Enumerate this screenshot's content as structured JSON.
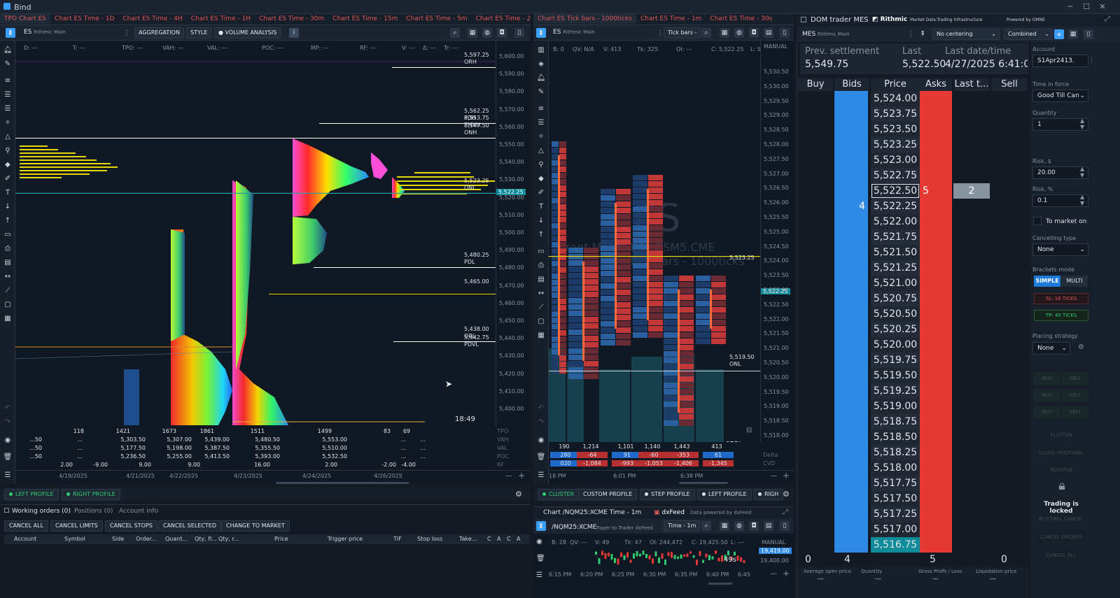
{
  "app": {
    "title": "Bind"
  },
  "left_panel": {
    "tabs": [
      "TPO Chart ES",
      "Chart ES Time - 1D",
      "Chart ES Time - 4H",
      "Chart ES Time - 1H",
      "Chart ES Time - 30m",
      "Chart ES Time - 15m",
      "Chart ES Time - 5m",
      "Chart ES Time - 2m",
      "Cha"
    ],
    "symbol": "ES",
    "connection": "Rithmic Main",
    "buttons": {
      "aggregation": "AGGREGATION",
      "style": "STYLE",
      "volume_analysis": "VOLUME ANALYSIS"
    },
    "status": [
      "D: ---",
      "T: ---",
      "TPO: ---",
      "VAH: ---",
      "VAL: ---",
      "POC: ---",
      "MP: ---",
      "RF: ---",
      "V: ---",
      "Δ: ---",
      "Tr: ---"
    ],
    "price_ticks": [
      "5,600.00",
      "5,590.00",
      "5,580.00",
      "5,570.00",
      "5,560.00",
      "5,550.00",
      "5,540.00",
      "5,530.00",
      "5,520.00",
      "5,510.00",
      "5,500.00",
      "5,490.00",
      "5,480.00",
      "5,470.00",
      "5,460.00",
      "5,450.00",
      "5,440.00",
      "5,430.00",
      "5,420.00",
      "5,410.00",
      "5,400.00"
    ],
    "levels": [
      {
        "price": "5,597.25",
        "name": "ORH"
      },
      {
        "price": "5,562.25",
        "name": "PDH"
      },
      {
        "price": "5,553.75",
        "name": "PMVH"
      },
      {
        "price": "5,547.50",
        "name": "ONH"
      },
      {
        "price": "5,523.25",
        "name": "ONL"
      },
      {
        "price": "5,480.25",
        "name": "PDL"
      },
      {
        "price": "5,465.00",
        "name": ""
      },
      {
        "price": "5,438.00",
        "name": "ORL"
      },
      {
        "price": "5,442.75",
        "name": "PDVL"
      }
    ],
    "current_price": "5,522.25",
    "timer": "18:49",
    "stats": {
      "tpo": [
        "118",
        "1421",
        "1673",
        "1861",
        "1511",
        "1499",
        "83",
        "69"
      ],
      "vah": [
        "...50",
        "...",
        "5,303.50",
        "5,307.00",
        "5,439.00",
        "5,480.50",
        "5,553.00",
        "...",
        "..."
      ],
      "val": [
        "...50",
        "...",
        "5,177.50",
        "5,198.00",
        "5,387.50",
        "5,355.50",
        "5,510.00",
        "...",
        "..."
      ],
      "poc": [
        "...50",
        "...",
        "5,236.50",
        "5,255.00",
        "5,413.50",
        "5,393.00",
        "5,532.50",
        "...",
        "..."
      ],
      "rf": [
        "2.00",
        "-9.00",
        "9.00",
        "9.00",
        "16.00",
        "2.00",
        "-2.00",
        "-4.00"
      ],
      "labels": [
        "TPO",
        "VAH",
        "VAL",
        "POC",
        "RF"
      ]
    },
    "dates": [
      "4/19/2025",
      "4/21/2025",
      "4/22/2025",
      "4/23/2025",
      "4/24/2025",
      "4/26/2025"
    ],
    "profile_buttons": {
      "left": "LEFT PROFILE",
      "right": "RIGHT PROFILE"
    }
  },
  "orders": {
    "tabs": [
      "Working orders (0)",
      "Positions (0)",
      "Account info"
    ],
    "buttons": [
      "CANCEL ALL",
      "CANCEL LIMITS",
      "CANCEL STOPS",
      "CANCEL SELECTED",
      "CHANGE TO MARKET"
    ],
    "columns": [
      "Account",
      "Symbol",
      "Side",
      "Order...",
      "Quant...",
      "Qty, fi...",
      "Qty, r...",
      "Price",
      "Trigger price",
      "TIF",
      "Stop loss",
      "Take...",
      "C",
      "A",
      "C",
      "A"
    ]
  },
  "mid_panel": {
    "tabs": [
      "Chart ES Tick bars - 1000ticks",
      "Chart ES Time - 1m",
      "Chart ES Time - 30s"
    ],
    "symbol": "ES",
    "connection": "Rithmic Main",
    "mode": "Tick bars -",
    "status": [
      "B: 0",
      "QV: N/A",
      "V: 413",
      "Tk: 325",
      "OI: ---",
      "C: 5,522.25",
      "L: 5"
    ],
    "scale": "MANUAL",
    "watermark": {
      "sym": "ES",
      "line1": "Front Month ES - ESM5.CME",
      "line2": "Tick bars - 1000ticks"
    },
    "price_ticks": [
      "5,530.50",
      "5,530.00",
      "5,529.50",
      "5,529.00",
      "5,528.50",
      "5,528.00",
      "5,527.50",
      "5,527.00",
      "5,526.50",
      "5,526.00",
      "5,525.50",
      "5,525.00",
      "5,524.50",
      "5,524.00",
      "5,523.50",
      "5,523.00",
      "5,522.50",
      "5,522.00",
      "5,521.50",
      "5,521.00",
      "5,520.50",
      "5,520.00",
      "5,519.50",
      "5,519.00",
      "5,518.50",
      "5,518.00",
      "5,517.50",
      "5,517.00"
    ],
    "level_523": "5,523.25",
    "level_onl": {
      "price": "5,519.50",
      "name": "ONL"
    },
    "current": "5,522.25",
    "tick_count": "675t",
    "volume": [
      "190",
      "1,214",
      "1,101",
      "1,140",
      "1,443",
      "413"
    ],
    "delta": [
      "280",
      "-64",
      "91",
      "-60",
      "-353",
      "61"
    ],
    "cvd": [
      "020",
      "-1,084",
      "-993",
      "-1,053",
      "-1,406",
      "-1,345"
    ],
    "row_labels": [
      "Delta",
      "CVD"
    ],
    "times": [
      "18 PM",
      "6:01 PM",
      "6:38 PM"
    ],
    "profile_buttons": [
      "CLUSTER",
      "CUSTOM PROFILE",
      "STEP PROFILE",
      "LEFT PROFILE",
      "RIGH"
    ]
  },
  "nq_panel": {
    "title": "Chart /NQM25:XCME Time - 1m",
    "feed": "dxFeed",
    "feed_note": "Data powered by dxFeed",
    "symbol": "/NQM25:XCME",
    "account": "Paper to Trader dxFeed",
    "mode": "Time - 1m",
    "status": [
      "B: 28",
      "QV: ---",
      "V: 49",
      "Tk: 47",
      "OI: 244,472",
      "C: 19,425.50",
      "L: ---"
    ],
    "scale": "MANUAL",
    "price_tag": "19,419.00",
    "price_tick": "19,400.00",
    "timer": "49s",
    "times": [
      "6:15 PM",
      "6:20 PM",
      "6:25 PM",
      "6:30 PM",
      "6:35 PM",
      "6:40 PM",
      "6:45"
    ]
  },
  "dom": {
    "title": "DOM trader MES",
    "brand": "Rithmic",
    "brand_sub": "Market Data-Trading Infrastructure",
    "powered": "Powered by OMNE",
    "symbol": "MES",
    "connection": "Rithmic Main",
    "centering": "No centering",
    "combined": "Combined",
    "info": {
      "prev_label": "Prev. settlement",
      "prev": "5,549.75",
      "last_label": "Last",
      "last": "5,522.50",
      "date_label": "Last date/time",
      "date": "4/27/2025 6:41:0"
    },
    "columns": [
      "Buy",
      "Bids",
      "Price",
      "Asks",
      "Last t...",
      "Sell"
    ],
    "prices": [
      "5,524.00",
      "5,523.75",
      "5,523.50",
      "5,523.25",
      "5,523.00",
      "5,522.75",
      "5,522.50",
      "5,522.25",
      "5,522.00",
      "5,521.75",
      "5,521.50",
      "5,521.25",
      "5,521.00",
      "5,520.75",
      "5,520.50",
      "5,520.25",
      "5,520.00",
      "5,519.75",
      "5,519.50",
      "5,519.25",
      "5,519.00",
      "5,518.75",
      "5,518.50",
      "5,518.25",
      "5,518.00",
      "5,517.75",
      "5,517.50",
      "5,517.25",
      "5,517.00",
      "5,516.75"
    ],
    "ask_at_last": "5",
    "last_trade": "2",
    "bid_at_best": "4",
    "totals": {
      "buy": "0",
      "bids": "4",
      "asks": "5",
      "sell": "0"
    },
    "footer": [
      {
        "l": "Average open price",
        "v": "---"
      },
      {
        "l": "Quantity",
        "v": "---"
      },
      {
        "l": "Gross Profit / Loss",
        "v": "---"
      },
      {
        "l": "Liquidation price",
        "v": "---"
      }
    ],
    "colors": {
      "bid": "#2e8ae6",
      "ask": "#e53935",
      "price_hl": "#0f8b9a"
    }
  },
  "order_panel": {
    "account_label": "Account",
    "account": "S1Apr2413.",
    "tif_label": "Time in force",
    "tif": "Good Till Can",
    "qty_label": "Quantity",
    "qty": "1",
    "risk_label": "Risk, $",
    "risk": "20.00",
    "riskp_label": "Risk, %",
    "riskp": "0.1",
    "market_on": "To market on",
    "cancel_label": "Cancelling type",
    "cancel": "None",
    "brackets_label": "Brackets mode",
    "simple": "SIMPLE",
    "multi": "MULTI",
    "sl": "SL: 16 TICKS",
    "tp": "TP: 40 TICKS",
    "placing_label": "Placing strategy",
    "placing": "None",
    "locked": "Trading is locked",
    "disabled_buttons": [
      "BUY",
      "SELL",
      "BUY",
      "SELL",
      "BUY",
      "SELL",
      "FLATTEN",
      "CLOSE POSITIONS",
      "REVERSE",
      "BUY/SELL CANCEL",
      "CANCEL ORDERS",
      "CANCEL ALL"
    ]
  }
}
